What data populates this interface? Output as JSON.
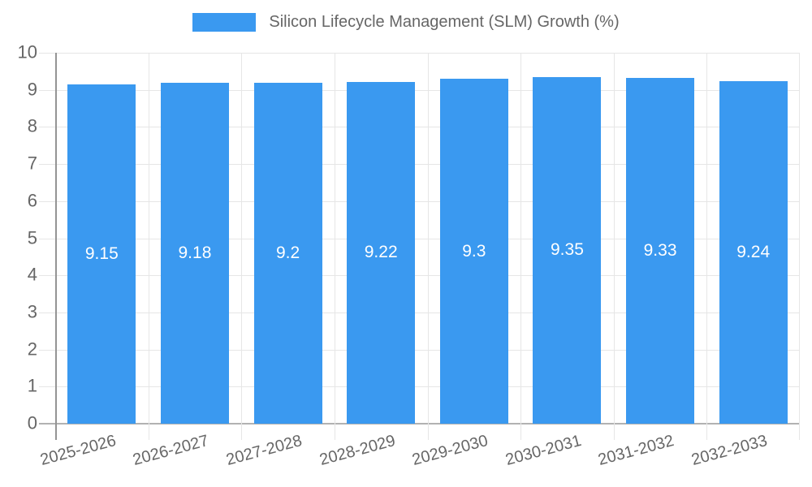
{
  "legend": {
    "label": "Silicon Lifecycle Management (SLM) Growth (%)"
  },
  "chart_data": {
    "type": "bar",
    "title": "Silicon Lifecycle Management (SLM) Growth (%)",
    "categories": [
      "2025-2026",
      "2026-2027",
      "2027-2028",
      "2028-2029",
      "2029-2030",
      "2030-2031",
      "2031-2032",
      "2032-2033"
    ],
    "values": [
      9.15,
      9.18,
      9.2,
      9.22,
      9.3,
      9.35,
      9.33,
      9.24
    ],
    "bar_labels": [
      "9.15",
      "9.18",
      "9.2",
      "9.22",
      "9.3",
      "9.35",
      "9.33",
      "9.24"
    ],
    "xlabel": "",
    "ylabel": "",
    "ylim": [
      0,
      10
    ],
    "y_ticks": [
      0,
      1,
      2,
      3,
      4,
      5,
      6,
      7,
      8,
      9,
      10
    ],
    "grid": true,
    "legend_position": "top",
    "colors": {
      "bar": "#3a99f0",
      "bar_label": "#ffffff",
      "gridline": "#e6e6e6",
      "axis_line": "#949494",
      "tick_text": "#666666",
      "title_text": "#666666",
      "background": "#ffffff"
    }
  }
}
